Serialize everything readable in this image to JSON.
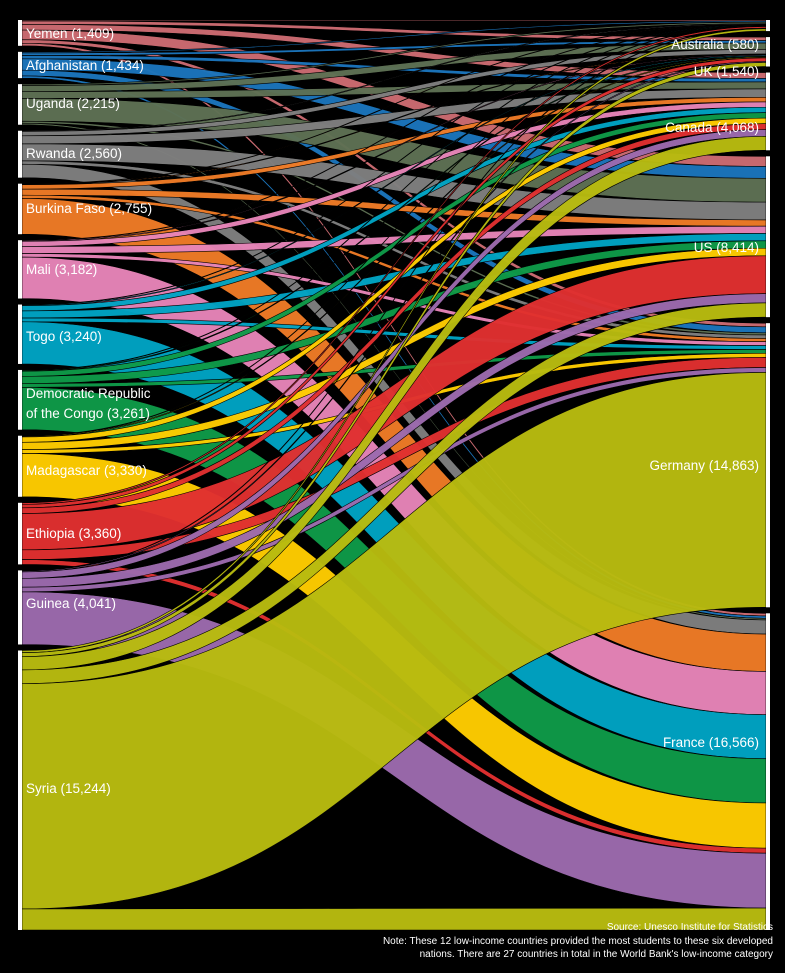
{
  "chart_data": {
    "type": "sankey",
    "title": "",
    "sources": [
      {
        "name": "Yemen",
        "label": "Yemen (1,409)",
        "value": 1409,
        "color": "#cc6b72"
      },
      {
        "name": "Afghanistan",
        "label": "Afghanistan (1,434)",
        "value": 1434,
        "color": "#1b75bc"
      },
      {
        "name": "Uganda",
        "label": "Uganda (2,215)",
        "value": 2215,
        "color": "#5e7154"
      },
      {
        "name": "Rwanda",
        "label": "Rwanda (2,560)",
        "value": 2560,
        "color": "#7f7f7f"
      },
      {
        "name": "Burkina Faso",
        "label": "Burkina Faso (2,755)",
        "value": 2755,
        "color": "#ee7b26"
      },
      {
        "name": "Mali",
        "label": "Mali (3,182)",
        "value": 3182,
        "color": "#e684b8"
      },
      {
        "name": "Togo",
        "label": "Togo (3,240)",
        "value": 3240,
        "color": "#00a3c3"
      },
      {
        "name": "Democratic Republic of the Congo",
        "label_line1": "Democratic Republic",
        "label_line2": "of the Congo (3,261)",
        "value": 3261,
        "color": "#0e9a48"
      },
      {
        "name": "Madagascar",
        "label": "Madagascar (3,330)",
        "value": 3330,
        "color": "#ffcc00"
      },
      {
        "name": "Ethiopia",
        "label": "Ethiopia (3,360)",
        "value": 3360,
        "color": "#e03030"
      },
      {
        "name": "Guinea",
        "label": "Guinea (4,041)",
        "value": 4041,
        "color": "#9c6aad"
      },
      {
        "name": "Syria",
        "label": "Syria (15,244)",
        "value": 15244,
        "color": "#b8bb10"
      }
    ],
    "destinations": [
      {
        "name": "Australia",
        "label": "Australia (580)",
        "value": 580
      },
      {
        "name": "UK",
        "label": "UK (1,540)",
        "value": 1540
      },
      {
        "name": "Canada",
        "label": "Canada (4,068)",
        "value": 4068
      },
      {
        "name": "US",
        "label": "US (8,414)",
        "value": 8414
      },
      {
        "name": "Germany",
        "label": "Germany (14,863)",
        "value": 14863
      },
      {
        "name": "France",
        "label": "France (16,566)",
        "value": 16566
      }
    ]
  },
  "footer": {
    "source": "Source: Unesco Institute for Statistics",
    "note_line1": "Note: These 12 low-income countries provided the most students to these six developed",
    "note_line2": "nations. There are 27 countries in total in the World Bank's low-income category"
  }
}
